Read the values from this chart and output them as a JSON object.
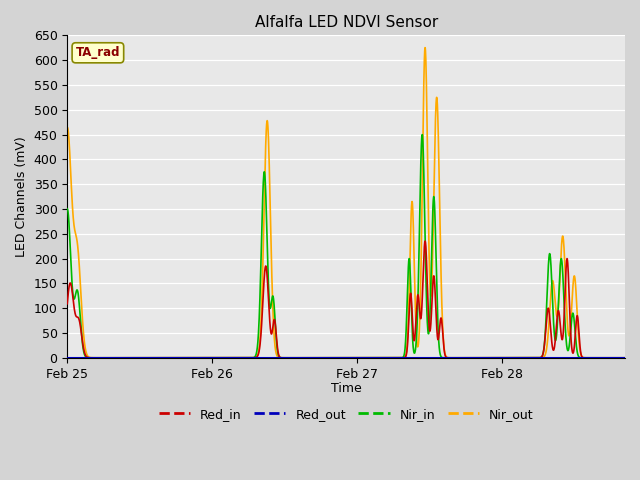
{
  "title": "Alfalfa LED NDVI Sensor",
  "ylabel": "LED Channels (mV)",
  "xlabel": "Time",
  "ylim": [
    0,
    650
  ],
  "ta_rad_label": "TA_rad",
  "legend_entries": [
    "Red_in",
    "Red_out",
    "Nir_in",
    "Nir_out"
  ],
  "line_colors": [
    "#cc0000",
    "#0000bb",
    "#00bb00",
    "#ffaa00"
  ],
  "xtick_labels": [
    "Feb 25",
    "Feb 26",
    "Feb 27",
    "Feb 28"
  ],
  "xtick_positions": [
    0,
    1,
    2,
    3
  ],
  "xlim": [
    0,
    3.85
  ],
  "grid_color": "#ffffff",
  "fig_facecolor": "#d4d4d4",
  "ax_facecolor": "#e8e8e8"
}
